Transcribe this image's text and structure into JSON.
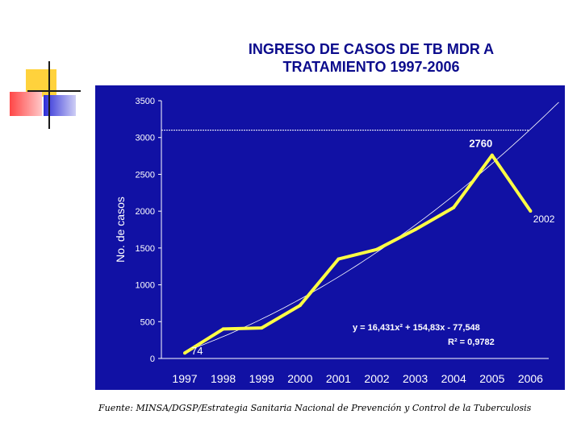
{
  "slide": {
    "title_line1": "INGRESO DE CASOS DE TB MDR A",
    "title_line2": "TRATAMIENTO 1997-2006",
    "source": "Fuente: MINSA/DGSP/Estrategia Sanitaria Nacional de Prevención y Control de la Tuberculosis"
  },
  "colors": {
    "plot_background": "#1111a4",
    "line": "#ffff44",
    "text": "#ffffff",
    "title": "#0b0b8c",
    "deco_yellow": "#ffd23c",
    "deco_red": "#ff4646",
    "deco_blue": "#2d2dd7"
  },
  "chart_data": {
    "type": "line",
    "title": "",
    "xlabel": "",
    "ylabel": "No. de casos",
    "categories": [
      "1997",
      "1998",
      "1999",
      "2000",
      "2001",
      "2002",
      "2003",
      "2004",
      "2005",
      "2006"
    ],
    "series": [
      {
        "values": [
          74,
          400,
          415,
          720,
          1350,
          1480,
          1750,
          2050,
          2760,
          2002
        ]
      }
    ],
    "ylim": [
      0,
      3500
    ],
    "yticks": [
      0,
      500,
      1000,
      1500,
      2000,
      2500,
      3000,
      3500
    ],
    "reference_line": 3100,
    "trendline": {
      "type": "polynomial",
      "a": 16.431,
      "b": 154.83,
      "c": -77.548,
      "equation_label": "y = 16,431x² + 154,83x - 77,548",
      "r2_label": "R² = 0,9782"
    },
    "data_labels": [
      {
        "index": 0,
        "text": "74"
      },
      {
        "index": 8,
        "text": "2760"
      },
      {
        "index": 9,
        "text": "2002"
      }
    ],
    "grid": false,
    "legend": "none"
  }
}
